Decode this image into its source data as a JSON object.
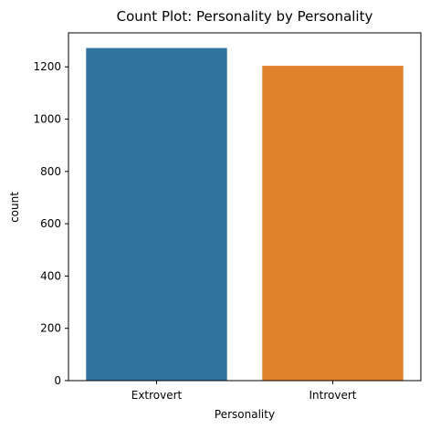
{
  "chart_data": {
    "type": "bar",
    "title": "Count Plot: Personality by Personality",
    "xlabel": "Personality",
    "ylabel": "count",
    "categories": [
      "Extrovert",
      "Introvert"
    ],
    "values": [
      1272,
      1204
    ],
    "colors": [
      "#3274a1",
      "#e1812c"
    ],
    "ylim": [
      0,
      1330
    ],
    "yticks": [
      0,
      200,
      400,
      600,
      800,
      1000,
      1200
    ],
    "grid": false,
    "legend": "none"
  }
}
